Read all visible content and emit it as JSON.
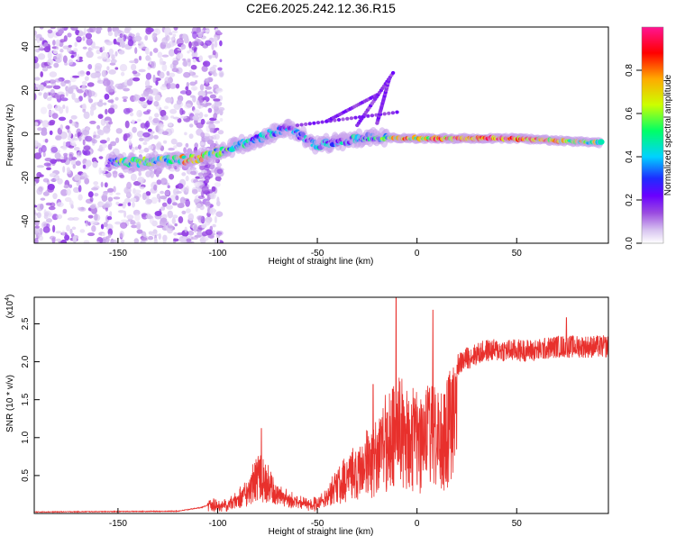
{
  "title": "C2E6.2025.242.12.36.R15",
  "chart_data": [
    {
      "type": "heatmap",
      "name": "spectrogram",
      "xlabel": "Height of straight line (km)",
      "ylabel": "Frequency (Hz)",
      "xlim": [
        -192,
        96
      ],
      "ylim": [
        -50,
        49
      ],
      "xticks": [
        -150,
        -100,
        -50,
        0,
        50
      ],
      "yticks": [
        -40,
        -20,
        0,
        20,
        40
      ],
      "colorbar": {
        "label": "Normalized spectral amplitude",
        "range": [
          0,
          1
        ],
        "ticks": [
          "0.0",
          "0.2",
          "0.4",
          "0.6",
          "0.8"
        ],
        "tick_values": [
          0.0,
          0.2,
          0.4,
          0.6,
          0.8
        ],
        "colors": [
          "#ffffff",
          "#d8c4f0",
          "#9b4ce0",
          "#6a00ff",
          "#1e2cff",
          "#00d2ff",
          "#00ff66",
          "#ccff00",
          "#ffaa00",
          "#ff0000",
          "#ff1493"
        ]
      },
      "ridge": [
        {
          "x": -155,
          "f": -13,
          "a": 0.45
        },
        {
          "x": -140,
          "f": -13,
          "a": 0.6
        },
        {
          "x": -125,
          "f": -12,
          "a": 0.55
        },
        {
          "x": -110,
          "f": -11.5,
          "a": 0.8
        },
        {
          "x": -95,
          "f": -7,
          "a": 0.5
        },
        {
          "x": -80,
          "f": -2,
          "a": 0.45
        },
        {
          "x": -65,
          "f": 3,
          "a": 0.35
        },
        {
          "x": -50,
          "f": -5,
          "a": 0.4
        },
        {
          "x": -35,
          "f": -3,
          "a": 0.4
        },
        {
          "x": -20,
          "f": -1,
          "a": 0.45
        },
        {
          "x": -10,
          "f": -2,
          "a": 0.7
        },
        {
          "x": 10,
          "f": -2,
          "a": 0.8
        },
        {
          "x": 30,
          "f": -2,
          "a": 0.85
        },
        {
          "x": 50,
          "f": -2,
          "a": 0.85
        },
        {
          "x": 70,
          "f": -3,
          "a": 0.75
        },
        {
          "x": 92,
          "f": -4,
          "a": 0.6
        }
      ]
    },
    {
      "type": "line",
      "name": "snr",
      "xlabel": "Height of straight line (km)",
      "ylabel": "SNR (10 * v/v)",
      "multiplier_label": "(x10",
      "multiplier_exp": "4",
      "multiplier_close": ")",
      "xlim": [
        -192,
        96
      ],
      "ylim": [
        0,
        2.85
      ],
      "xticks": [
        -150,
        -100,
        -50,
        0,
        50
      ],
      "yticks": [
        0.5,
        1.0,
        1.5,
        2.0,
        2.5
      ],
      "ytick_labels": [
        "0.5",
        "1.0",
        "1.5",
        "2.0",
        "2.5"
      ],
      "color": "#e8302c",
      "envelope": {
        "x": [
          -192,
          -120,
          -108,
          -104,
          -95,
          -90,
          -85,
          -80,
          -75,
          -70,
          -65,
          -60,
          -55,
          -50,
          -45,
          -40,
          -35,
          -30,
          -25,
          -20,
          -15,
          -12,
          -10,
          -8,
          -5,
          0,
          5,
          8,
          10,
          15,
          20,
          25,
          30,
          35,
          40,
          50,
          60,
          70,
          80,
          90,
          96
        ],
        "y": [
          0.02,
          0.03,
          0.08,
          0.12,
          0.1,
          0.25,
          0.4,
          0.75,
          0.6,
          0.35,
          0.22,
          0.15,
          0.12,
          0.15,
          0.3,
          0.55,
          0.7,
          0.85,
          1.05,
          1.2,
          1.6,
          1.8,
          1.85,
          1.75,
          1.6,
          1.55,
          1.6,
          1.9,
          1.55,
          1.8,
          1.95,
          2.05,
          2.1,
          2.15,
          2.15,
          2.15,
          2.15,
          2.2,
          2.2,
          2.2,
          2.2
        ]
      },
      "spikes": [
        {
          "x": -78,
          "y": 1.12
        },
        {
          "x": -10.5,
          "y": 2.85
        },
        {
          "x": 8,
          "y": 2.68
        },
        {
          "x": -22,
          "y": 1.7
        },
        {
          "x": 75,
          "y": 2.58
        }
      ]
    }
  ]
}
